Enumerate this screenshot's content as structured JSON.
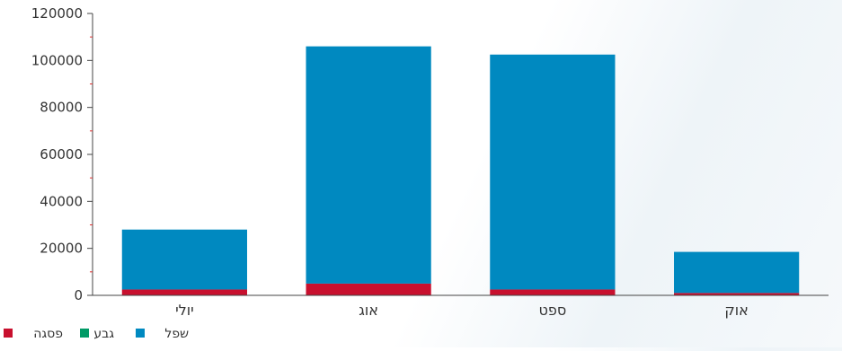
{
  "chart_data": {
    "type": "bar",
    "stacked": true,
    "categories": [
      "יולי",
      "אוג",
      "ספט",
      "אוק"
    ],
    "series": [
      {
        "name": "פסגה",
        "color": "#c8102e",
        "values": [
          2500,
          5000,
          2500,
          1000
        ]
      },
      {
        "name": "גבע",
        "color": "#009a66",
        "values": [
          0,
          0,
          0,
          0
        ]
      },
      {
        "name": "שפל",
        "color": "#0089c0",
        "values": [
          25500,
          101000,
          100000,
          17500
        ]
      }
    ],
    "ylim": [
      0,
      120000
    ],
    "yticks": [
      "0",
      "20000",
      "40000",
      "60000",
      "80000",
      "100000",
      "120000"
    ],
    "title": "",
    "xlabel": "",
    "ylabel": "",
    "grid": false,
    "legend_position": "bottom-left"
  }
}
